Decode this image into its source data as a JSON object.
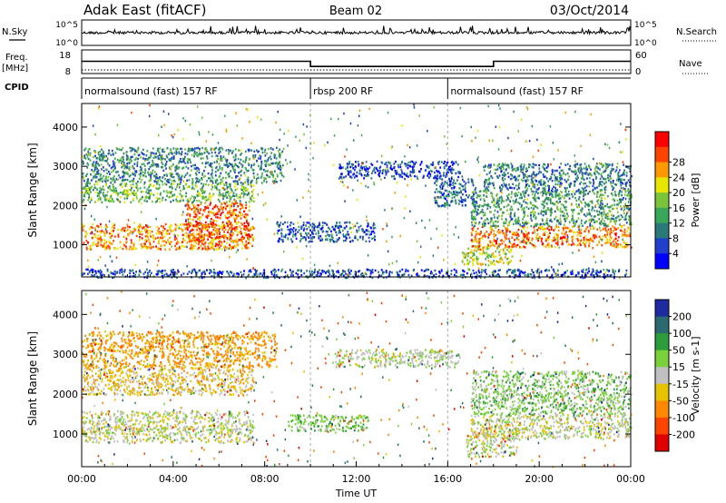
{
  "header": {
    "station": "Adak East (fitACF)",
    "beam": "Beam 02",
    "date": "03/Oct/2014"
  },
  "top_panels": {
    "nsky_label": "N.Sky",
    "nsearch_label": "N.Search",
    "freq_label_1": "Freq.",
    "freq_label_2": "[MHz]",
    "nave_label": "Nave",
    "cpid_label": "CPID",
    "count_ticks": [
      "10^5",
      "10^0"
    ],
    "freq_ticks": [
      "18",
      "8"
    ],
    "nave_ticks": [
      "60",
      "0"
    ],
    "cpid_segments": [
      {
        "label": "normalsound (fast) 157 RF",
        "start_h": 0,
        "end_h": 10
      },
      {
        "label": "rbsp 200 RF",
        "start_h": 10,
        "end_h": 16
      },
      {
        "label": "normalsound (fast) 157 RF",
        "start_h": 16,
        "end_h": 24
      }
    ],
    "frequency_mhz": [
      {
        "start_h": 0,
        "end_h": 10,
        "value": 13.2
      },
      {
        "start_h": 10,
        "end_h": 18,
        "value": 11.0
      },
      {
        "start_h": 18,
        "end_h": 24,
        "value": 13.2
      }
    ],
    "nave": [
      {
        "start_h": 0,
        "end_h": 24,
        "value": 0
      }
    ]
  },
  "chart_data": [
    {
      "type": "heatmap",
      "name": "power",
      "ylabel": "Slant Range [km]",
      "xlabel": "Time UT",
      "xlim": [
        0,
        24
      ],
      "ylim": [
        180,
        4600
      ],
      "x_ticks": [
        "00:00",
        "04:00",
        "08:00",
        "12:00",
        "16:00",
        "20:00",
        "00:00"
      ],
      "y_ticks": [
        1000,
        2000,
        3000,
        4000
      ],
      "colorbar": {
        "label": "Power [dB]",
        "ticks": [
          4,
          8,
          12,
          16,
          20,
          24,
          28
        ],
        "colors": [
          "#0000ff",
          "#1f3fcc",
          "#2a7a7a",
          "#3aa65a",
          "#7ac43a",
          "#e6e600",
          "#ff9900",
          "#ff4400",
          "#ff0000"
        ]
      },
      "regions": [
        {
          "x": [
            0,
            7.5
          ],
          "y": [
            900,
            1550
          ],
          "level": 24
        },
        {
          "x": [
            4.5,
            7.3
          ],
          "y": [
            1100,
            2100
          ],
          "level": 26
        },
        {
          "x": [
            0,
            7.5
          ],
          "y": [
            2100,
            2600
          ],
          "level": 14
        },
        {
          "x": [
            0,
            8.8
          ],
          "y": [
            2600,
            3500
          ],
          "level": 10
        },
        {
          "x": [
            8.5,
            10
          ],
          "y": [
            1100,
            1600
          ],
          "level": 6
        },
        {
          "x": [
            10,
            12.8
          ],
          "y": [
            1100,
            1600
          ],
          "level": 7
        },
        {
          "x": [
            11.2,
            16.6
          ],
          "y": [
            2700,
            3150
          ],
          "level": 5
        },
        {
          "x": [
            15.4,
            17.2
          ],
          "y": [
            2000,
            2700
          ],
          "level": 8
        },
        {
          "x": [
            16.6,
            18.8
          ],
          "y": [
            500,
            1000
          ],
          "level": 18
        },
        {
          "x": [
            17,
            24
          ],
          "y": [
            950,
            1500
          ],
          "level": 25
        },
        {
          "x": [
            17,
            24
          ],
          "y": [
            1500,
            2400
          ],
          "level": 12
        },
        {
          "x": [
            17.5,
            24
          ],
          "y": [
            2400,
            3100
          ],
          "level": 9
        },
        {
          "x": [
            0,
            24
          ],
          "y": [
            180,
            400
          ],
          "level": 6
        }
      ]
    },
    {
      "type": "heatmap",
      "name": "velocity",
      "ylabel": "Slant Range [km]",
      "xlabel": "Time UT",
      "xlim": [
        0,
        24
      ],
      "ylim": [
        180,
        4600
      ],
      "x_ticks": [
        "00:00",
        "04:00",
        "08:00",
        "12:00",
        "16:00",
        "20:00",
        "00:00"
      ],
      "y_ticks": [
        1000,
        2000,
        3000,
        4000
      ],
      "colorbar": {
        "label": "Velocity [m s-1]",
        "ticks": [
          200,
          100,
          50,
          15,
          -15,
          -50,
          -100,
          -200
        ],
        "colors": [
          "#1e2aa0",
          "#2a6a70",
          "#2e9c3a",
          "#7ad23a",
          "#c0c0c0",
          "#e6c200",
          "#ff8800",
          "#ff4400",
          "#e00000"
        ]
      },
      "regions": [
        {
          "x": [
            0,
            7.5
          ],
          "y": [
            800,
            1600
          ],
          "value": 0
        },
        {
          "x": [
            0,
            7.5
          ],
          "y": [
            2000,
            2700
          ],
          "value": -30
        },
        {
          "x": [
            0,
            8.5
          ],
          "y": [
            2700,
            3600
          ],
          "value": -60
        },
        {
          "x": [
            16.8,
            19
          ],
          "y": [
            450,
            1050
          ],
          "value": 0
        },
        {
          "x": [
            17,
            24
          ],
          "y": [
            900,
            1500
          ],
          "value": 0
        },
        {
          "x": [
            17,
            24
          ],
          "y": [
            1500,
            2600
          ],
          "value": 30
        },
        {
          "x": [
            11,
            16.5
          ],
          "y": [
            2700,
            3150
          ],
          "value": 10
        },
        {
          "x": [
            9,
            12.5
          ],
          "y": [
            1100,
            1500
          ],
          "value": 40
        }
      ]
    }
  ]
}
